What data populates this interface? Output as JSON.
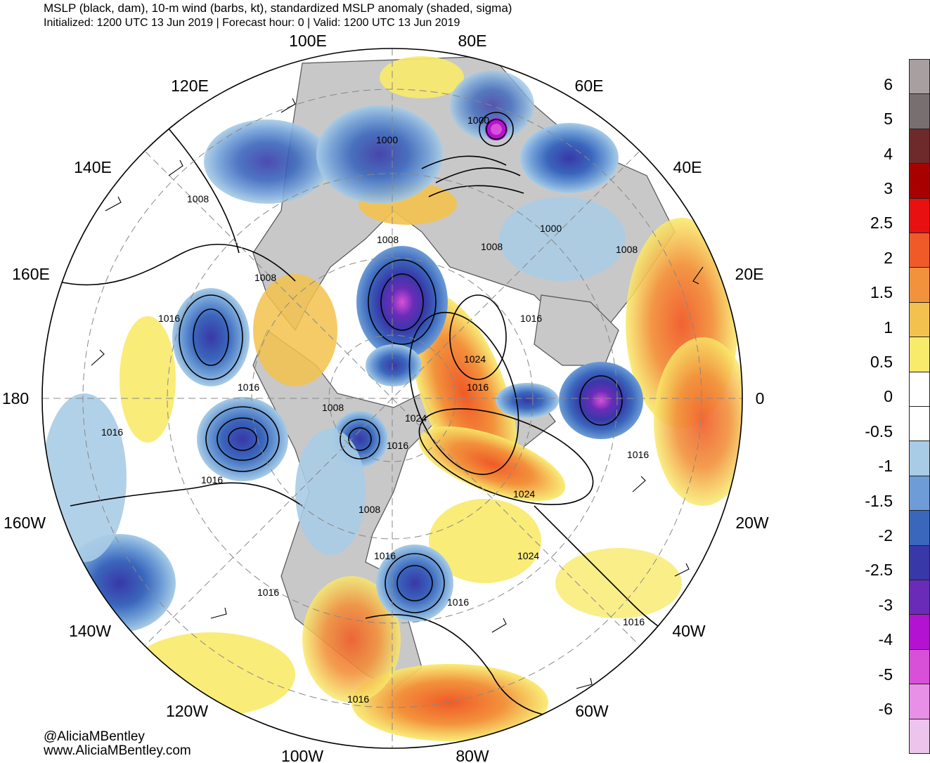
{
  "header": {
    "title": "MSLP (black, dam), 10-m wind (barbs, kt), standardized MSLP anomaly (shaded, sigma)",
    "subtitle": "Initialized: 1200 UTC 13 Jun 2019 | Forecast hour: 0 | Valid: 1200 UTC 13 Jun 2019"
  },
  "credits": {
    "twitter": "@AliciaMBentley",
    "website": "www.AliciaMBentley.com"
  },
  "map": {
    "projection": "north-polar-stereographic",
    "longitude_labels": [
      "100E",
      "80E",
      "120E",
      "60E",
      "140E",
      "40E",
      "160E",
      "20E",
      "180",
      "0",
      "160W",
      "20W",
      "140W",
      "40W",
      "120W",
      "60W",
      "100W",
      "80W"
    ],
    "isobar_labels": [
      "1000",
      "1000",
      "1008",
      "1000",
      "1008",
      "1008",
      "1008",
      "1016",
      "1008",
      "1016",
      "1024",
      "1016",
      "1016",
      "1008",
      "1024",
      "1016",
      "1016",
      "1016",
      "1016",
      "1008",
      "1024",
      "1024",
      "1016",
      "1016",
      "1016",
      "1016",
      "1016"
    ],
    "colors": {
      "land": "#c8c8c8",
      "coast": "#555555",
      "isobar": "#000000",
      "grid": "#888888"
    }
  },
  "colorbar": {
    "labels": [
      "6",
      "5",
      "4",
      "3",
      "2.5",
      "2",
      "1.5",
      "1",
      "0.5",
      "0",
      "-0.5",
      "-1",
      "-1.5",
      "-2",
      "-2.5",
      "-3",
      "-4",
      "-5",
      "-6"
    ],
    "colors": [
      "#a8a0a0",
      "#787070",
      "#6e2a2a",
      "#a80000",
      "#e81010",
      "#f05a28",
      "#f2923c",
      "#f3c24e",
      "#f8ea6a",
      "#ffffff",
      "#ffffff",
      "#a8cce6",
      "#6d9cd6",
      "#3a66bc",
      "#3838a8",
      "#6a2cb8",
      "#b412d2",
      "#d850d8",
      "#e890e8",
      "#ecc4ec"
    ]
  }
}
